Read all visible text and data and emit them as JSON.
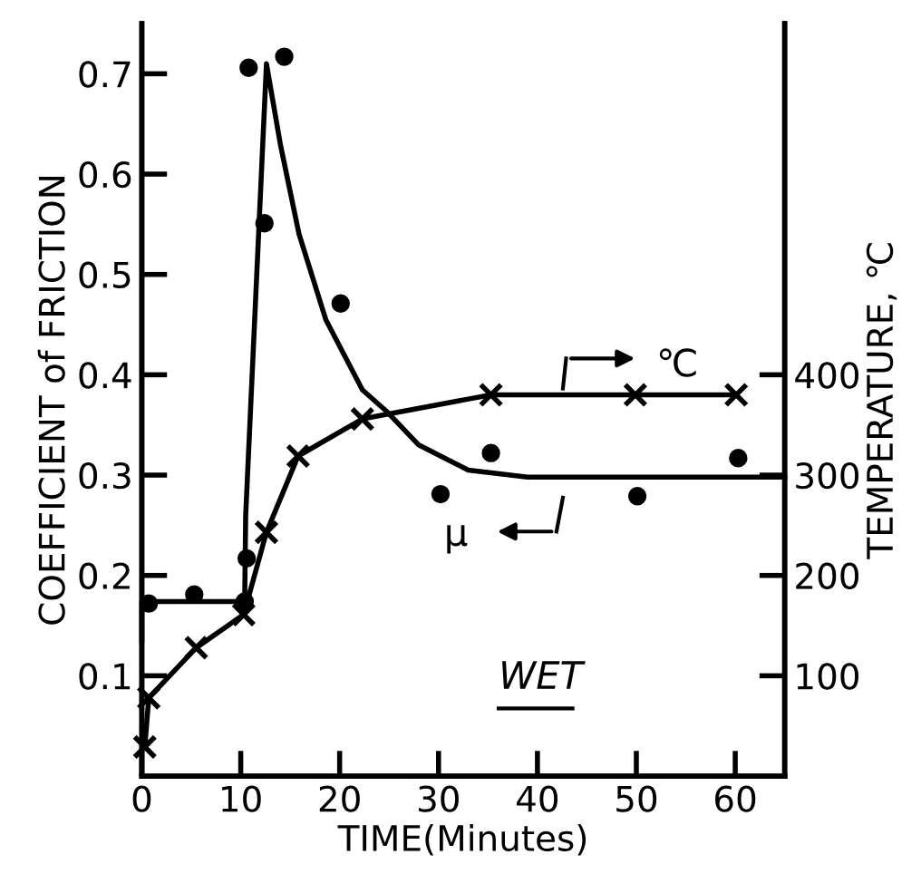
{
  "chart_data": {
    "type": "line",
    "xlabel": "TIME(Minutes)",
    "ylabel": "COEFFICIENT of FRICTION",
    "y2label": "TEMPERATURE, ℃",
    "xlim": [
      0,
      65
    ],
    "xticks": [
      0,
      10,
      20,
      30,
      40,
      50,
      60
    ],
    "ylim": [
      0,
      0.75
    ],
    "yticks": [
      0.1,
      0.2,
      0.3,
      0.4,
      0.5,
      0.6,
      0.7
    ],
    "y2lim": [
      0,
      750
    ],
    "y2ticks": [
      100,
      200,
      300,
      400
    ],
    "grid": false,
    "legend": false,
    "series": [
      {
        "type": "scatter",
        "marker": "circle",
        "color": "#000000",
        "x": [
          0.7,
          5.3,
          10.4,
          10.6,
          10.8,
          12.4,
          14.4,
          20.1,
          30.2,
          35.3,
          50.1,
          60.3
        ],
        "values": [
          0.172,
          0.181,
          0.174,
          0.217,
          0.706,
          0.551,
          0.717,
          0.471,
          0.281,
          0.322,
          0.279,
          0.317
        ]
      },
      {
        "marker": "none",
        "color": "#000000",
        "x": [
          0,
          0,
          10.4,
          10.5,
          12.6,
          14,
          15.9,
          18.6,
          22.3,
          24.7,
          28,
          33,
          39,
          65
        ],
        "values": [
          0.135,
          0.174,
          0.174,
          0.26,
          0.71,
          0.63,
          0.54,
          0.455,
          0.385,
          0.364,
          0.33,
          0.305,
          0.298,
          0.298
        ]
      },
      {
        "type": "line",
        "marker": "cross",
        "axis": "y2",
        "color": "#000000",
        "x": [
          0.3,
          0.7,
          5.5,
          10.3,
          12.6,
          15.8,
          22.3,
          35.3,
          49.9,
          60.1
        ],
        "values": [
          29,
          78,
          128,
          161,
          243,
          319,
          356,
          380,
          380,
          380
        ]
      }
    ],
    "annotations": [
      "WET",
      "℃",
      "μ"
    ]
  }
}
